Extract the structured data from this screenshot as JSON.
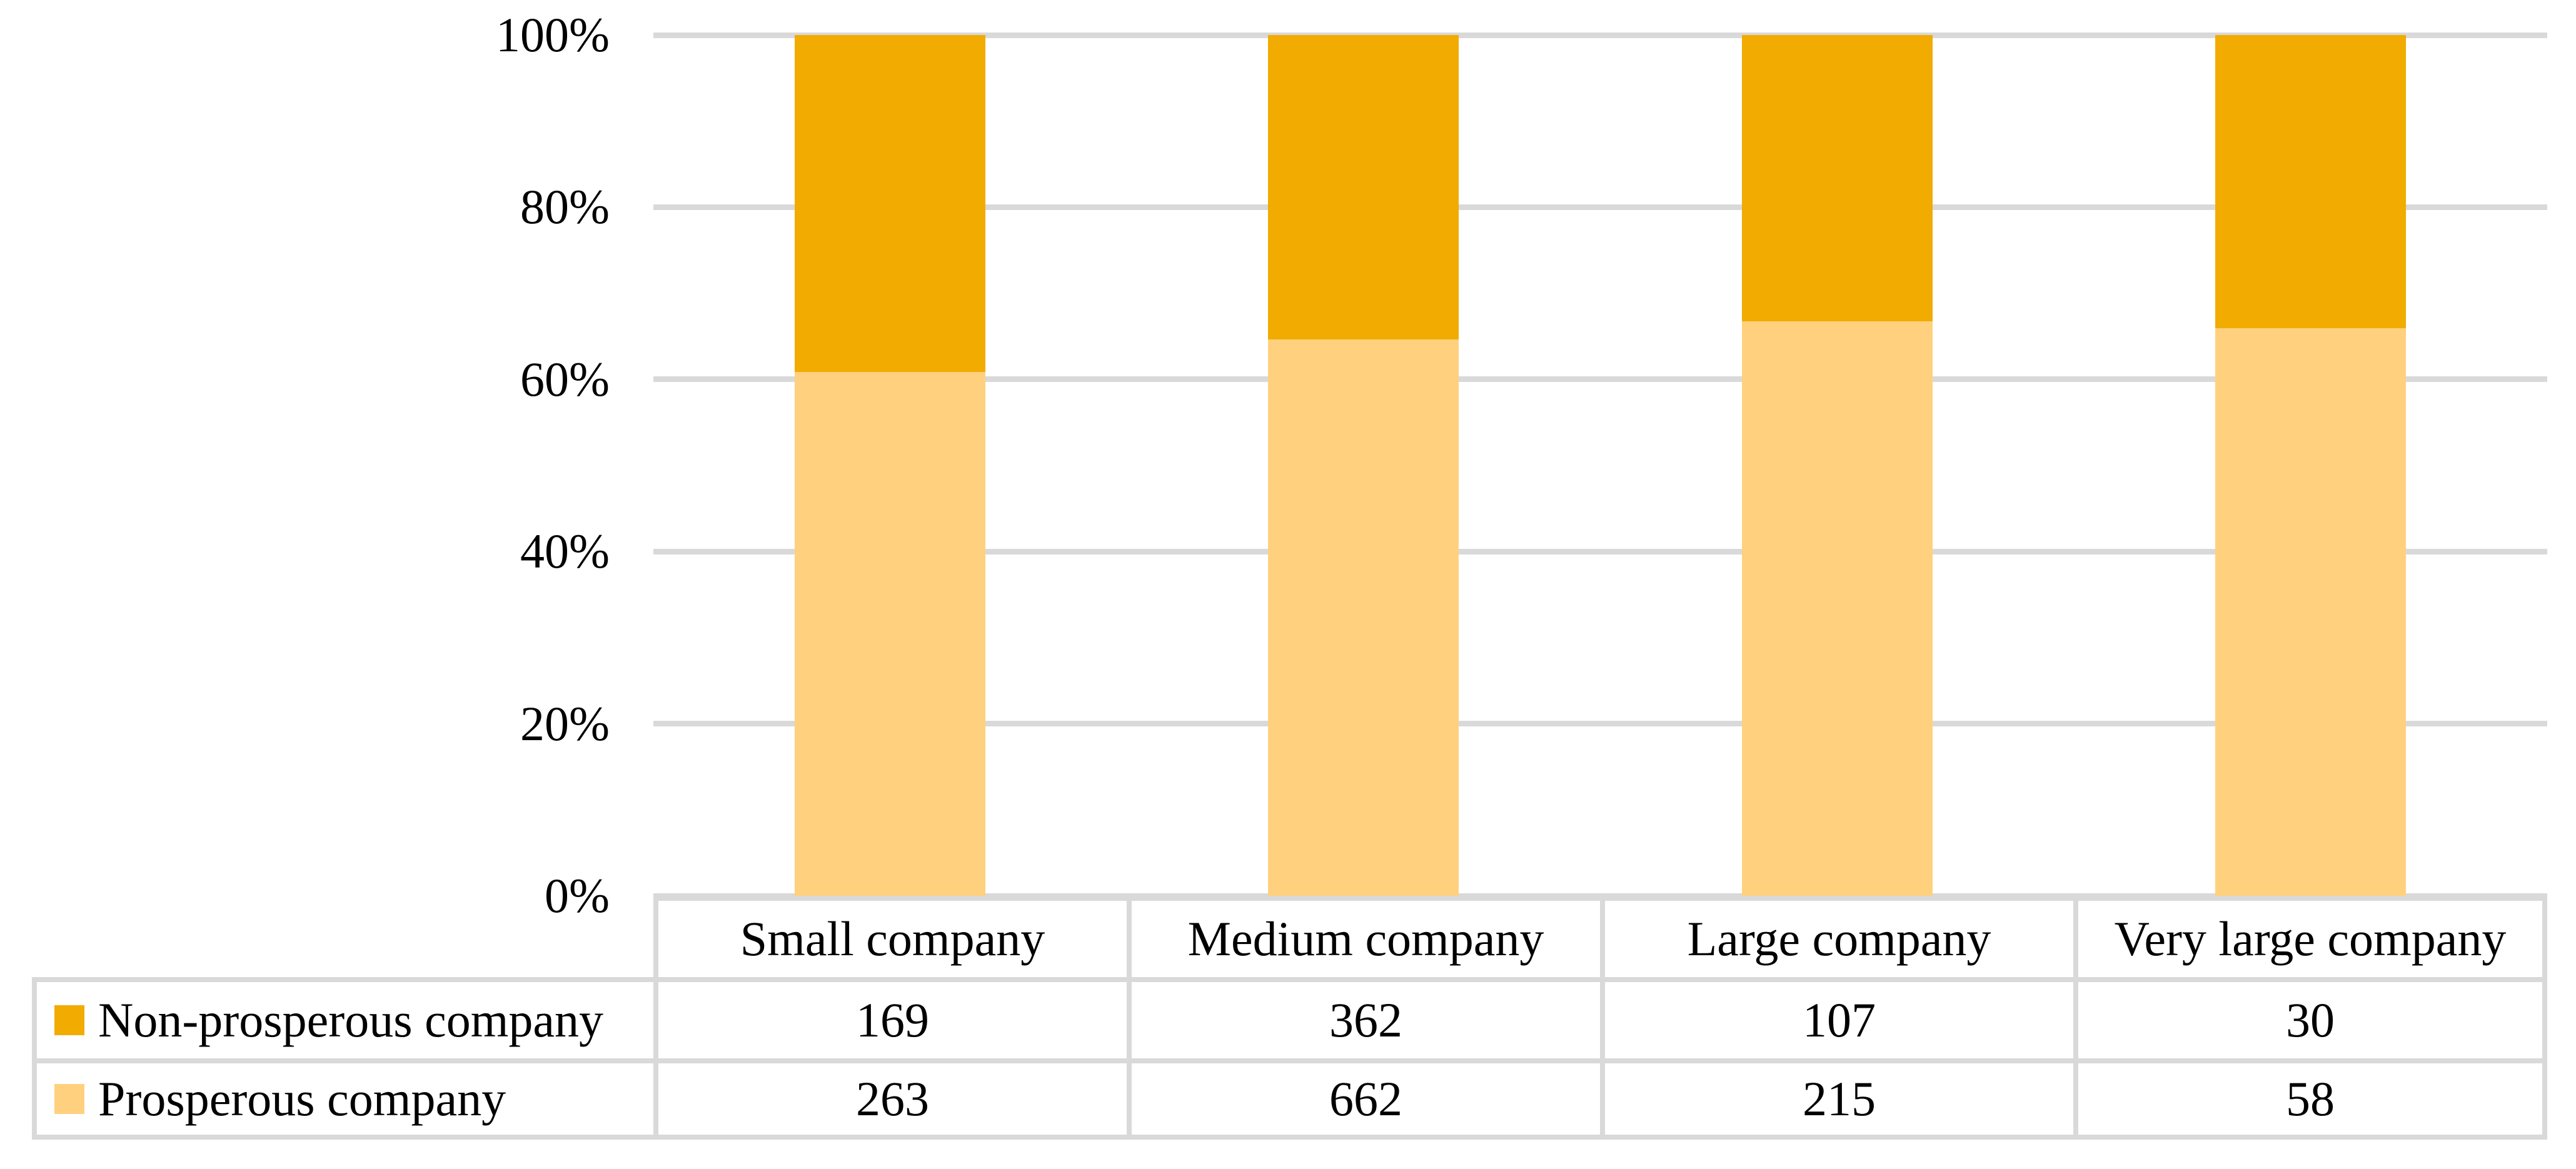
{
  "figure": {
    "background": "#FFFFFF",
    "text_color": "#000000"
  },
  "chart_data": {
    "type": "bar",
    "variant": "100-percent-stacked-column-with-data-table",
    "title": "",
    "xlabel": "",
    "ylabel": "",
    "categories": [
      "Small company",
      "Medium company",
      "Large company",
      "Very large company"
    ],
    "series": [
      {
        "name": "Non-prosperous company",
        "values": [
          169,
          362,
          107,
          30
        ],
        "color": "#F2AB00"
      },
      {
        "name": "Prosperous company",
        "values": [
          263,
          662,
          215,
          58
        ],
        "color": "#FFD17E"
      }
    ],
    "stack_order_bottom_up": [
      "Prosperous company",
      "Non-prosperous company"
    ],
    "y_axis": {
      "min": 0,
      "max": 100,
      "tick_values": [
        0,
        20,
        40,
        60,
        80,
        100
      ],
      "tick_labels": [
        "0%",
        "20%",
        "40%",
        "60%",
        "80%",
        "100%"
      ]
    },
    "gridlines": {
      "show": true,
      "color": "#D9D9D9"
    },
    "legend_position": "left-of-data-table",
    "data_table": {
      "show": true,
      "border_color": "#D9D9D9",
      "header_row": [
        "Small company",
        "Medium company",
        "Large company",
        "Very large company"
      ],
      "rows": [
        {
          "label": "Non-prosperous company",
          "values": [
            "169",
            "362",
            "107",
            "30"
          ]
        },
        {
          "label": "Prosperous company",
          "values": [
            "263",
            "662",
            "215",
            "58"
          ]
        }
      ]
    }
  }
}
